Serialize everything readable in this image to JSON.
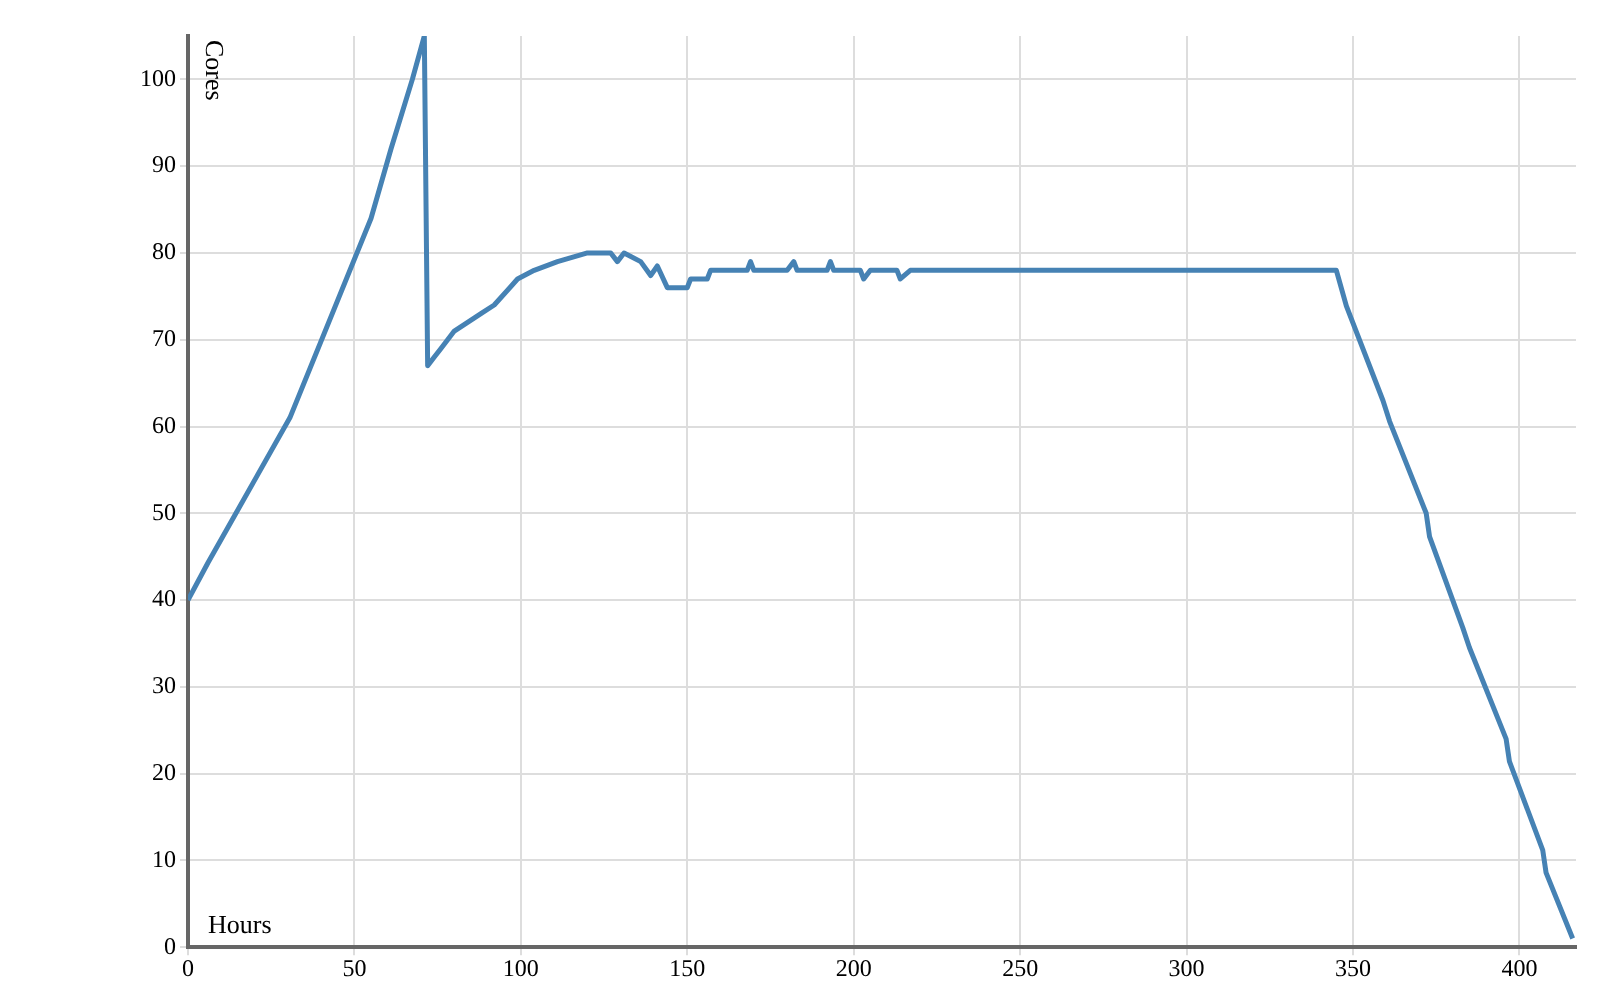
{
  "chart_data": {
    "type": "line",
    "xlabel": "Hours",
    "ylabel": "Cores",
    "xlim": [
      0,
      417
    ],
    "ylim": [
      0,
      105
    ],
    "xticks": [
      0,
      50,
      100,
      150,
      200,
      250,
      300,
      350,
      400
    ],
    "yticks": [
      0,
      10,
      20,
      30,
      40,
      50,
      60,
      70,
      80,
      90,
      100
    ],
    "grid": true,
    "legend": false,
    "marker": "none",
    "line_style": "solid",
    "series": [
      {
        "color": "#4682b4",
        "x": [
          0,
          6,
          30.6,
          55,
          61,
          67.4,
          71,
          72,
          74,
          76,
          78,
          80,
          84,
          88,
          92,
          99,
          104,
          111,
          120,
          127,
          129,
          131,
          136,
          139,
          141,
          144,
          150,
          151,
          156,
          157,
          168,
          169,
          170,
          180,
          182,
          183,
          192,
          193,
          194,
          202,
          203,
          205,
          213,
          214,
          217,
          345,
          348,
          359,
          361,
          372,
          373,
          383,
          385,
          396,
          397,
          407,
          408,
          416
        ],
        "values": [
          40,
          44.3,
          61,
          84,
          92,
          100,
          105,
          67,
          68,
          69,
          70,
          71,
          72,
          73,
          74,
          77,
          78,
          79,
          80,
          80,
          79,
          80,
          79,
          77.4,
          78.5,
          76,
          76,
          77,
          77,
          78,
          78,
          79,
          78,
          78,
          79,
          78,
          78,
          79,
          78,
          78,
          77,
          78,
          78,
          77,
          78,
          78,
          73.9,
          63,
          60.6,
          50,
          47.3,
          36.8,
          34.5,
          24,
          21.4,
          11.2,
          8.6,
          1
        ]
      }
    ]
  }
}
